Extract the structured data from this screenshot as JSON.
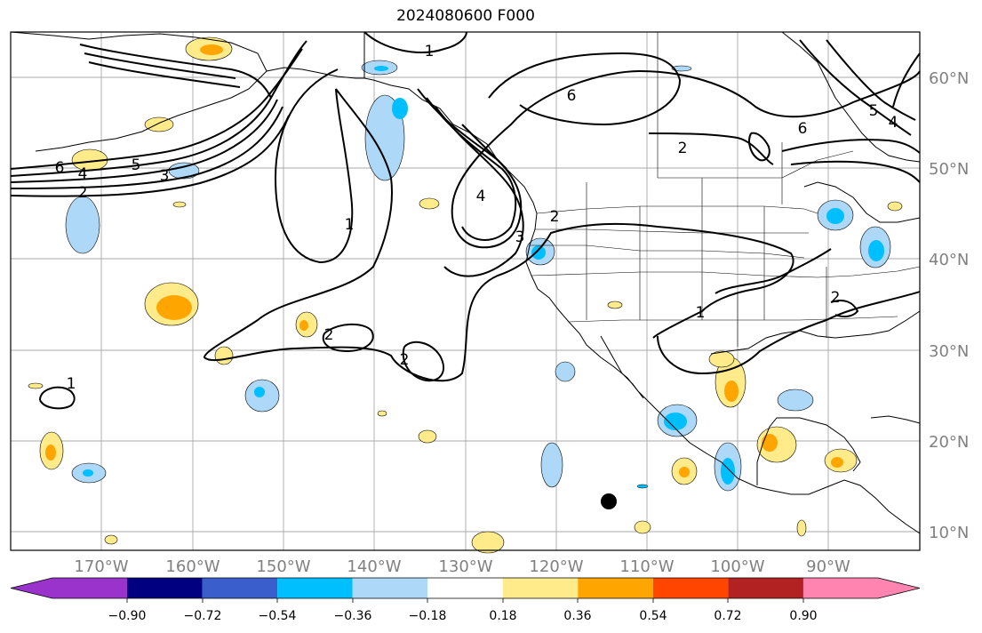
{
  "title": "2024080600 F000",
  "map": {
    "lon_labels": [
      "170°W",
      "160°W",
      "150°W",
      "140°W",
      "130°W",
      "120°W",
      "110°W",
      "100°W",
      "90°W"
    ],
    "lat_labels": [
      "60°N",
      "50°N",
      "40°N",
      "30°N",
      "20°N",
      "10°N"
    ],
    "contour_labels": [
      "1",
      "2",
      "3",
      "4",
      "5",
      "6"
    ],
    "gridline_color": "#aaaaaa",
    "tick_label_color": "#808080"
  },
  "colorbar": {
    "colors": [
      "#9a33cc",
      "#000080",
      "#3a5fcd",
      "#00bfff",
      "#add8f7",
      "#ffffff",
      "#ffeb8a",
      "#ffa500",
      "#ff4500",
      "#b22222",
      "#ff85b0"
    ],
    "tick_labels": [
      "−0.90",
      "−0.72",
      "−0.54",
      "−0.36",
      "−0.18",
      "0.18",
      "0.36",
      "0.54",
      "0.72",
      "0.90"
    ]
  }
}
